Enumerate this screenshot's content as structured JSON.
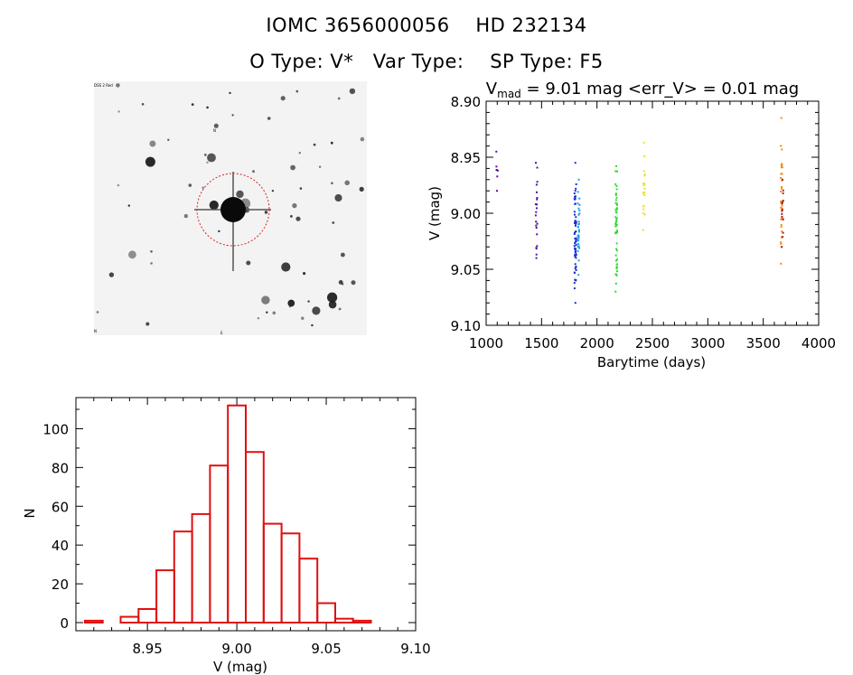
{
  "header": {
    "title_line1": "IOMC 3656000056    HD 232134",
    "title_line2": "O Type: V*   Var Type:    SP Type: F5"
  },
  "image_panel": {
    "label_top_left": "DSS 2 Red",
    "label_center_top": "N",
    "label_bottom_center": "E",
    "label_bottom_left": "N"
  },
  "chart_data": [
    {
      "type": "scatter",
      "title_prefix": "V",
      "title_subscript": "mad",
      "title_rest": " = 9.01 mag <err_V> = 0.01 mag",
      "xlabel": "Barytime (days)",
      "ylabel": "V (mag)",
      "xlim": [
        1000,
        4000
      ],
      "ylim": [
        9.1,
        8.9
      ],
      "y_inverted": true,
      "x_ticks": [
        1000,
        1500,
        2000,
        2500,
        3000,
        3500,
        4000
      ],
      "y_ticks": [
        "8.90",
        "8.95",
        "9.00",
        "9.05",
        "9.10"
      ],
      "series": [
        {
          "color": "#5a0f8f",
          "x": 1100,
          "y_range": [
            8.945,
            8.98
          ],
          "points": 7
        },
        {
          "color": "#4a1a9c",
          "x": 1455,
          "y_range": [
            8.955,
            9.04
          ],
          "points": 22
        },
        {
          "color": "#1a2fd0",
          "x": 1805,
          "y_range": [
            8.955,
            9.08
          ],
          "points": 60
        },
        {
          "color": "#1aa0e8",
          "x": 1835,
          "y_range": [
            8.97,
            9.055
          ],
          "points": 30
        },
        {
          "color": "#2ddc2d",
          "x": 2175,
          "y_range": [
            8.958,
            9.07
          ],
          "points": 55
        },
        {
          "color": "#f0e020",
          "x": 2425,
          "y_range": [
            8.937,
            9.015
          ],
          "points": 20
        },
        {
          "color": "#f08c10",
          "x": 3665,
          "y_range": [
            8.915,
            9.045
          ],
          "points": 35
        },
        {
          "color": "#b02020",
          "x": 3675,
          "y_range": [
            8.97,
            9.03
          ],
          "points": 15
        }
      ]
    },
    {
      "type": "bar",
      "xlabel": "V (mag)",
      "ylabel": "N",
      "xlim": [
        8.91,
        9.1
      ],
      "ylim": [
        0,
        115
      ],
      "x_ticks": [
        "8.95",
        "9.00",
        "9.05",
        "9.10"
      ],
      "y_ticks": [
        0,
        20,
        40,
        60,
        80,
        100
      ],
      "bin_width": 0.01,
      "bin_starts": [
        8.915,
        8.925,
        8.935,
        8.945,
        8.955,
        8.965,
        8.975,
        8.985,
        8.995,
        9.005,
        9.015,
        9.025,
        9.035,
        9.045,
        9.055,
        9.065,
        9.075,
        9.085
      ],
      "values": [
        1,
        0,
        3,
        7,
        27,
        47,
        56,
        81,
        112,
        88,
        51,
        46,
        33,
        10,
        2,
        1,
        0,
        0
      ],
      "color": "#e01010"
    }
  ]
}
